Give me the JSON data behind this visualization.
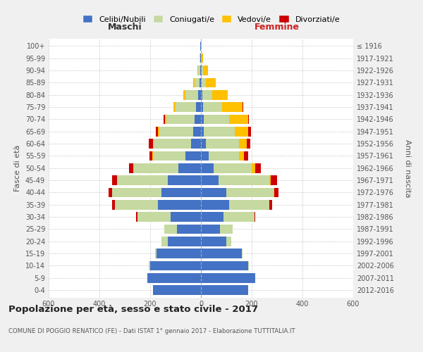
{
  "age_groups": [
    "0-4",
    "5-9",
    "10-14",
    "15-19",
    "20-24",
    "25-29",
    "30-34",
    "35-39",
    "40-44",
    "45-49",
    "50-54",
    "55-59",
    "60-64",
    "65-69",
    "70-74",
    "75-79",
    "80-84",
    "85-89",
    "90-94",
    "95-99",
    "100+"
  ],
  "birth_years": [
    "2012-2016",
    "2007-2011",
    "2002-2006",
    "1997-2001",
    "1992-1996",
    "1987-1991",
    "1982-1986",
    "1977-1981",
    "1972-1976",
    "1967-1971",
    "1962-1966",
    "1957-1961",
    "1952-1956",
    "1947-1951",
    "1942-1946",
    "1937-1941",
    "1932-1936",
    "1927-1931",
    "1922-1926",
    "1917-1921",
    "≤ 1916"
  ],
  "male": {
    "celibi": [
      190,
      210,
      200,
      175,
      130,
      95,
      120,
      170,
      155,
      130,
      90,
      60,
      40,
      30,
      25,
      20,
      10,
      5,
      3,
      2,
      2
    ],
    "coniugati": [
      0,
      0,
      5,
      5,
      25,
      50,
      130,
      170,
      195,
      200,
      175,
      130,
      145,
      135,
      110,
      80,
      50,
      20,
      8,
      3,
      0
    ],
    "vedovi": [
      0,
      0,
      0,
      0,
      0,
      0,
      0,
      0,
      0,
      0,
      3,
      3,
      5,
      5,
      8,
      8,
      10,
      5,
      3,
      0,
      0
    ],
    "divorziati": [
      0,
      0,
      0,
      0,
      0,
      0,
      5,
      10,
      15,
      20,
      15,
      10,
      15,
      8,
      3,
      0,
      0,
      0,
      0,
      0,
      0
    ]
  },
  "female": {
    "nubili": [
      185,
      215,
      185,
      160,
      100,
      75,
      90,
      110,
      100,
      70,
      50,
      30,
      20,
      12,
      10,
      8,
      5,
      4,
      2,
      1,
      1
    ],
    "coniugate": [
      0,
      0,
      5,
      5,
      20,
      50,
      120,
      160,
      185,
      200,
      150,
      120,
      130,
      120,
      100,
      75,
      40,
      15,
      5,
      2,
      0
    ],
    "vedove": [
      0,
      0,
      0,
      0,
      0,
      0,
      0,
      0,
      5,
      5,
      15,
      20,
      30,
      55,
      75,
      80,
      60,
      40,
      20,
      5,
      0
    ],
    "divorziate": [
      0,
      0,
      0,
      0,
      0,
      0,
      5,
      10,
      15,
      25,
      20,
      15,
      15,
      10,
      5,
      3,
      0,
      0,
      0,
      0,
      0
    ]
  },
  "colors": {
    "celibi": "#4472c4",
    "coniugati": "#c5d9a0",
    "vedovi": "#ffc000",
    "divorziati": "#cc0000"
  },
  "xlim": 600,
  "title": "Popolazione per età, sesso e stato civile - 2017",
  "subtitle": "COMUNE DI POGGIO RENATICO (FE) - Dati ISTAT 1° gennaio 2017 - Elaborazione TUTTITALIA.IT",
  "ylabel": "Fasce di età",
  "ylabel_right": "Anni di nascita",
  "bg_color": "#f0f0f0",
  "plot_bg": "#ffffff",
  "grid_color": "#cccccc",
  "maschi_color": "#333333",
  "femmine_color": "#cc2222"
}
